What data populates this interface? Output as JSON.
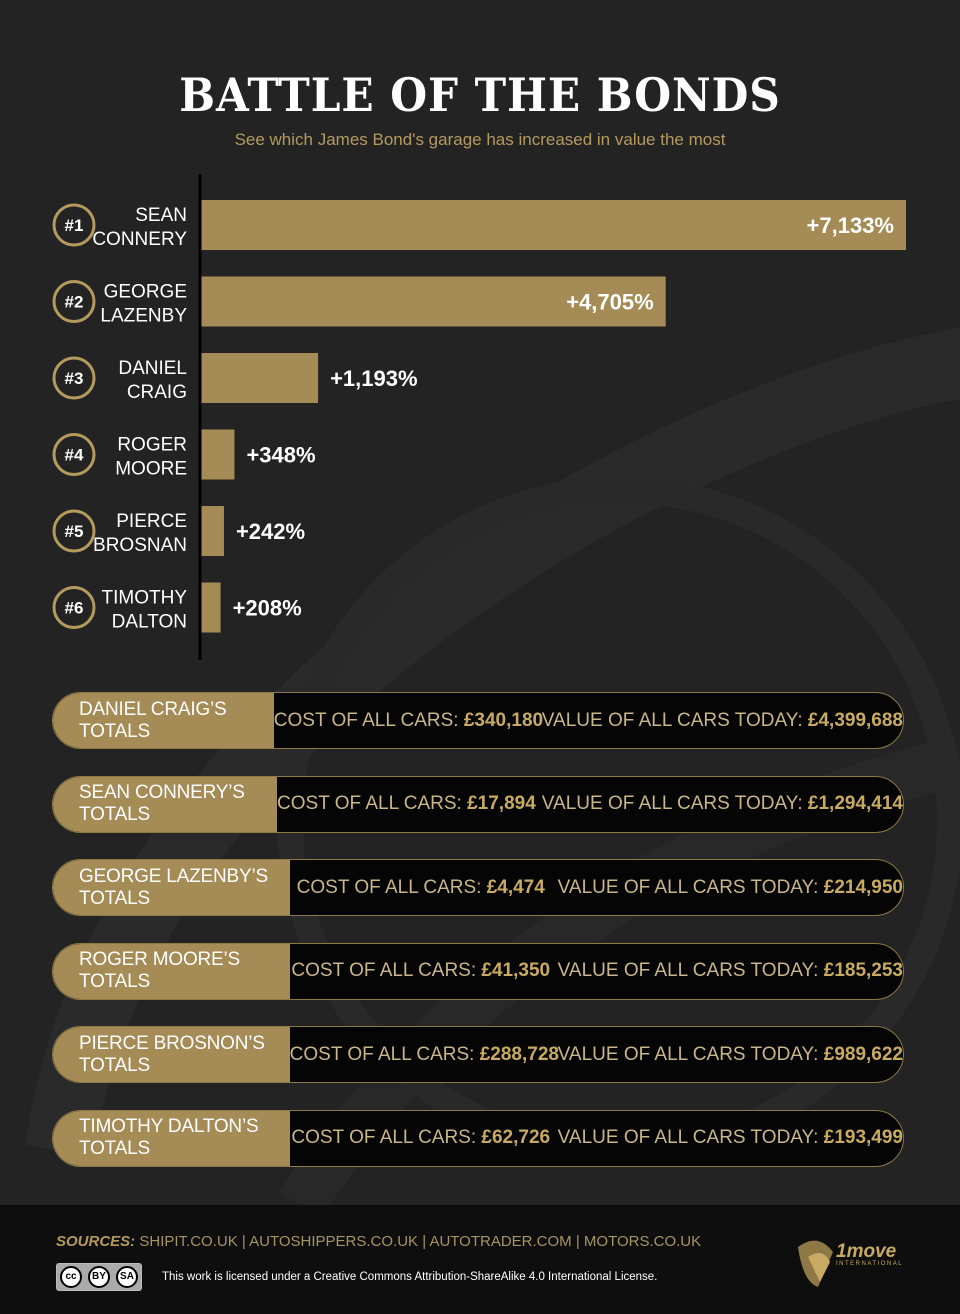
{
  "header": {
    "title": "BATTLE OF THE BONDS",
    "subtitle": "See which James Bond's garage has increased in value the most"
  },
  "colors": {
    "gold": "#a58b55",
    "gold_text": "#c9aa62",
    "background": "#232323",
    "white": "#ffffff"
  },
  "chart_data": {
    "type": "bar",
    "orientation": "horizontal",
    "title": "BATTLE OF THE BONDS",
    "xlabel": "",
    "ylabel": "",
    "unit": "%",
    "xlim": [
      0,
      7133
    ],
    "categories": [
      {
        "rank": "#1",
        "line1": "SEAN",
        "line2": "CONNERY"
      },
      {
        "rank": "#2",
        "line1": "GEORGE",
        "line2": "LAZENBY"
      },
      {
        "rank": "#3",
        "line1": "DANIEL",
        "line2": "CRAIG"
      },
      {
        "rank": "#4",
        "line1": "ROGER",
        "line2": "MOORE"
      },
      {
        "rank": "#5",
        "line1": "PIERCE",
        "line2": "BROSNAN"
      },
      {
        "rank": "#6",
        "line1": "TIMOTHY",
        "line2": "DALTON"
      }
    ],
    "values": [
      7133,
      4705,
      1193,
      348,
      242,
      208
    ],
    "labels": [
      "+7,133%",
      "+4,705%",
      "+1,193%",
      "+348%",
      "+242%",
      "+208%"
    ]
  },
  "totals": [
    {
      "label": "DANIEL CRAIG’S TOTALS",
      "cost_label": "COST OF ALL CARS:",
      "cost": "£340,180",
      "value_label": "VALUE OF ALL CARS TODAY:",
      "value": "£4,399,688"
    },
    {
      "label": "SEAN CONNERY’S TOTALS",
      "cost_label": "COST OF ALL CARS:",
      "cost": "£17,894",
      "value_label": "VALUE OF ALL CARS TODAY:",
      "value": "£1,294,414"
    },
    {
      "label": "GEORGE LAZENBY’S TOTALS",
      "cost_label": "COST OF ALL CARS:",
      "cost": "£4,474",
      "value_label": "VALUE OF ALL CARS TODAY:",
      "value": "£214,950"
    },
    {
      "label": "ROGER MOORE’S TOTALS",
      "cost_label": "COST OF ALL CARS:",
      "cost": "£41,350",
      "value_label": "VALUE OF ALL CARS TODAY:",
      "value": "£185,253"
    },
    {
      "label": "PIERCE BROSNON’S TOTALS",
      "cost_label": "COST OF ALL CARS:",
      "cost": "£288,728",
      "value_label": "VALUE OF ALL CARS TODAY:",
      "value": "£989,622"
    },
    {
      "label": "TIMOTHY DALTON’S TOTALS",
      "cost_label": "COST OF ALL CARS:",
      "cost": "£62,726",
      "value_label": "VALUE OF ALL CARS TODAY:",
      "value": "£193,499"
    }
  ],
  "footer": {
    "sources_label": "SOURCES:",
    "sources": "SHIPIT.CO.UK | AUTOSHIPPERS.CO.UK | AUTOTRADER.COM | MOTORS.CO.UK",
    "cc_badge": [
      "cc",
      "BY",
      "SA"
    ],
    "license": "This work is licensed under a Creative Commons Attribution-ShareAlike 4.0 International License.",
    "logo_text": "1move",
    "logo_sub": "INTERNATIONAL"
  }
}
